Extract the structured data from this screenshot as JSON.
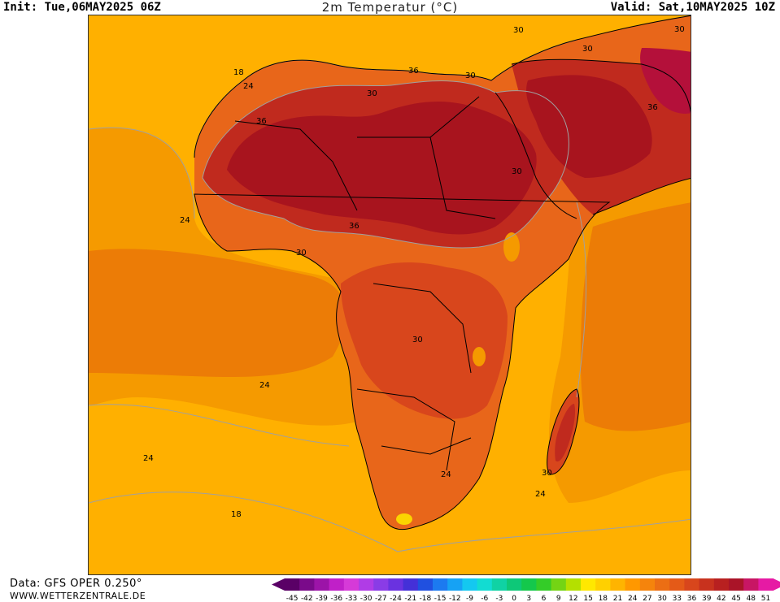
{
  "header": {
    "init": "Init: Tue,06MAY2025 06Z",
    "title": "2m Temperatur (°C)",
    "valid": "Valid: Sat,10MAY2025 10Z"
  },
  "footer": {
    "data_source": "Data: GFS OPER 0.250°",
    "website": "WWW.WETTERZENTRALE.DE"
  },
  "map": {
    "region": "Africa",
    "variable": "2m temperature",
    "units": "°C",
    "contour_labels": [
      "18",
      "24",
      "36",
      "36",
      "30",
      "30",
      "30",
      "36",
      "30",
      "30",
      "24",
      "30",
      "36",
      "30",
      "30",
      "24",
      "24",
      "30",
      "24",
      "24",
      "18"
    ],
    "colors": {
      "ocean_cool": "#ffb000",
      "ocean_warm": "#f59a00",
      "ocean_hot": "#ec7c06",
      "land_warm": "#e8661a",
      "land_hot": "#d8461c",
      "land_very_hot": "#c02a1e",
      "land_extreme": "#a8141e",
      "land_peak": "#b4103a",
      "cold_spot": "#fbd400",
      "coast": "#000000",
      "isotherm": "#a0a0a0"
    }
  },
  "colorbar": {
    "labels": [
      "-45",
      "-42",
      "-39",
      "-36",
      "-33",
      "-30",
      "-27",
      "-24",
      "-21",
      "-18",
      "-15",
      "-12",
      "-9",
      "-6",
      "-3",
      "0",
      "3",
      "6",
      "9",
      "12",
      "15",
      "18",
      "21",
      "24",
      "27",
      "30",
      "33",
      "36",
      "39",
      "42",
      "45",
      "48",
      "51"
    ],
    "colors": [
      "#5a0066",
      "#7a0a8a",
      "#9c14a8",
      "#c020c8",
      "#d63ad8",
      "#b03ce6",
      "#8a3ce6",
      "#6a32e0",
      "#4430d8",
      "#2050e0",
      "#1c7af0",
      "#16a2f4",
      "#14c8f0",
      "#12dcd2",
      "#10d2a4",
      "#0ec878",
      "#14c84c",
      "#34cc28",
      "#74d414",
      "#b4e000",
      "#ffe800",
      "#ffd000",
      "#ffb400",
      "#ff9800",
      "#f5840c",
      "#ec6e14",
      "#e45a18",
      "#d8461c",
      "#c8321e",
      "#b82020",
      "#aa1428",
      "#c81664",
      "#e61aa4"
    ]
  }
}
